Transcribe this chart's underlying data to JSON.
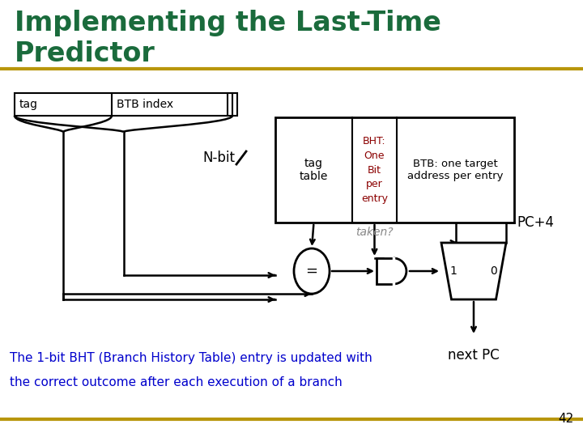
{
  "title_line1": "Implementing the Last-Time",
  "title_line2": "Predictor",
  "title_color": "#1a6b3c",
  "title_fontsize": 24,
  "bg_color": "#ffffff",
  "gold_line_color": "#b8960c",
  "tag_label": "tag",
  "btb_index_label": "BTB index",
  "nbit_label": "N-bit",
  "tag_table_label": "tag\ntable",
  "bht_label": "BHT:\nOne\nBit\nper\nentry",
  "bht_color": "#8b0000",
  "btb_label": "BTB: one target\naddress per entry",
  "btb_color": "#000000",
  "taken_label": "taken?",
  "taken_color": "#888888",
  "equals_label": "=",
  "pc4_label": "PC+4",
  "nextpc_label": "next PC",
  "bottom_text_line1": "The 1-bit BHT (Branch History Table) entry is updated with",
  "bottom_text_line2": "the correct outcome after each execution of a branch",
  "bottom_text_color": "#0000cc",
  "page_num": "42",
  "mux_label_1": "1",
  "mux_label_0": "0"
}
